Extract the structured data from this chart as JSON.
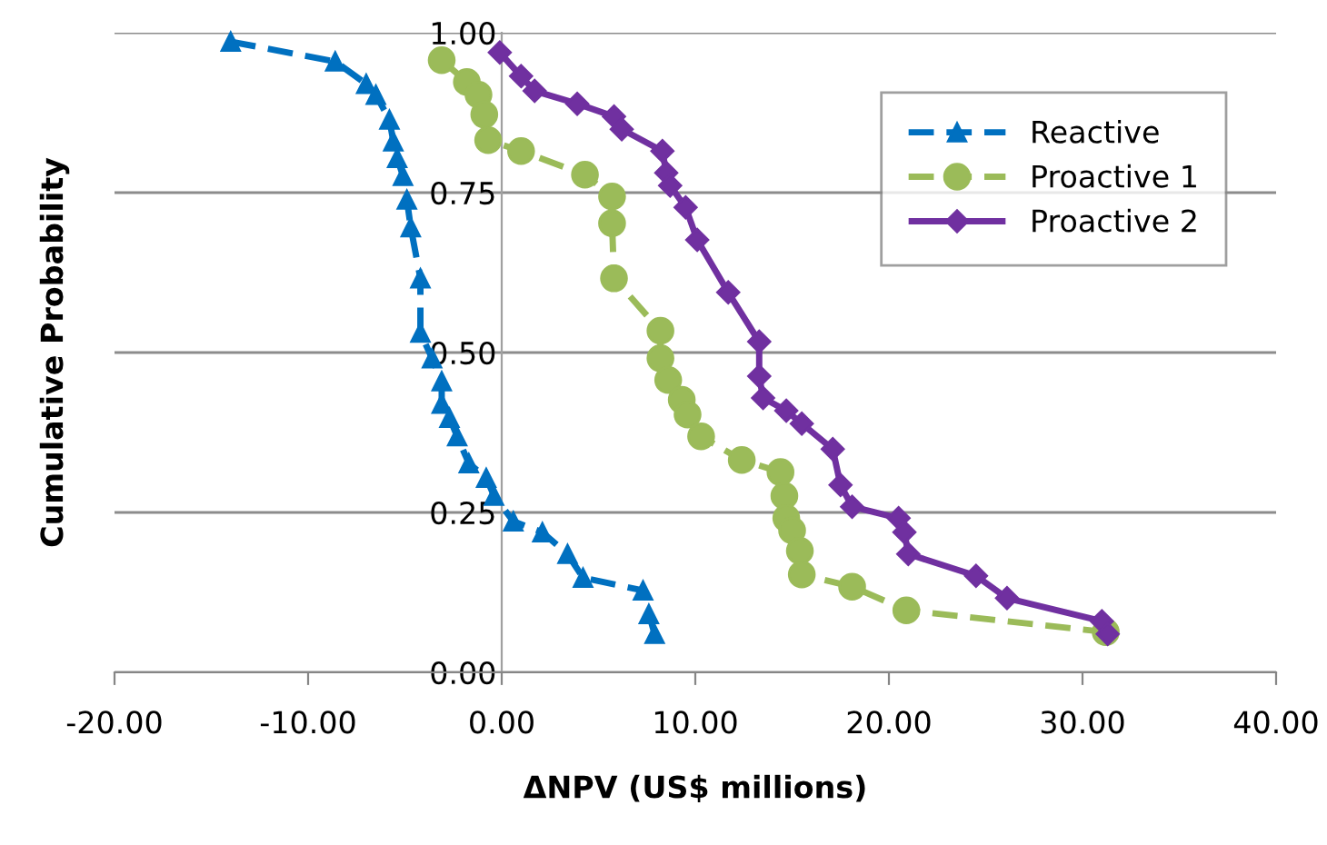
{
  "chart_data": {
    "type": "line",
    "xlabel": "ΔNPV (US$ millions)",
    "ylabel": "Cumulative Probability",
    "xlim": [
      -20,
      40
    ],
    "ylim": [
      0,
      1
    ],
    "xticks": [
      {
        "value": -20,
        "label": "-20.00"
      },
      {
        "value": -10,
        "label": "-10.00"
      },
      {
        "value": 0,
        "label": "0.00"
      },
      {
        "value": 10,
        "label": "10.00"
      },
      {
        "value": 20,
        "label": "20.00"
      },
      {
        "value": 30,
        "label": "30.00"
      },
      {
        "value": 40,
        "label": "40.00"
      }
    ],
    "yticks": [
      {
        "value": 0,
        "label": "0.00"
      },
      {
        "value": 0.25,
        "label": "0.25"
      },
      {
        "value": 0.5,
        "label": "0.50"
      },
      {
        "value": 0.75,
        "label": "0.75"
      },
      {
        "value": 1,
        "label": "1.00"
      }
    ],
    "grid": "y",
    "legend": "top right",
    "series": [
      {
        "name": "Reactive",
        "color": "#0070c0",
        "marker": "triangle",
        "line_style": "dashed",
        "x": [
          -14.0,
          -8.6,
          -7.0,
          -6.5,
          -5.8,
          -5.6,
          -5.4,
          -5.1,
          -4.9,
          -4.7,
          -4.2,
          -4.2,
          -3.6,
          -3.1,
          -3.1,
          -2.7,
          -2.3,
          -1.7,
          -0.8,
          -0.4,
          0.6,
          2.1,
          3.4,
          4.2,
          7.3,
          7.6,
          7.9
        ],
        "values": [
          0.986,
          0.955,
          0.92,
          0.903,
          0.864,
          0.83,
          0.804,
          0.776,
          0.739,
          0.696,
          0.616,
          0.531,
          0.491,
          0.455,
          0.42,
          0.398,
          0.369,
          0.327,
          0.304,
          0.276,
          0.236,
          0.219,
          0.185,
          0.148,
          0.128,
          0.091,
          0.06
        ]
      },
      {
        "name": "Proactive 1",
        "color": "#9bbb59",
        "marker": "circle",
        "line_style": "dashed",
        "x": [
          -3.1,
          -1.8,
          -1.2,
          -0.9,
          -0.7,
          1.0,
          4.3,
          5.7,
          5.7,
          5.8,
          8.2,
          8.2,
          8.6,
          9.3,
          9.6,
          10.3,
          12.4,
          14.4,
          14.6,
          14.7,
          15.0,
          15.4,
          15.5,
          18.1,
          20.9,
          31.2
        ],
        "values": [
          0.957,
          0.923,
          0.903,
          0.872,
          0.832,
          0.815,
          0.778,
          0.744,
          0.702,
          0.616,
          0.534,
          0.491,
          0.457,
          0.426,
          0.403,
          0.369,
          0.332,
          0.313,
          0.276,
          0.241,
          0.222,
          0.19,
          0.153,
          0.134,
          0.097,
          0.063
        ]
      },
      {
        "name": "Proactive 2",
        "color": "#7030a0",
        "marker": "diamond",
        "line_style": "solid",
        "x": [
          -0.1,
          1.0,
          1.7,
          3.9,
          5.8,
          6.2,
          8.3,
          8.5,
          8.7,
          9.5,
          10.1,
          11.7,
          13.3,
          13.3,
          13.5,
          14.7,
          15.5,
          17.1,
          17.5,
          18.1,
          20.5,
          20.8,
          21.0,
          24.5,
          26.1,
          31.0,
          31.3
        ],
        "values": [
          0.969,
          0.932,
          0.909,
          0.889,
          0.869,
          0.849,
          0.815,
          0.781,
          0.761,
          0.727,
          0.676,
          0.594,
          0.517,
          0.463,
          0.429,
          0.409,
          0.389,
          0.349,
          0.293,
          0.259,
          0.241,
          0.219,
          0.185,
          0.151,
          0.116,
          0.08,
          0.06
        ]
      }
    ]
  }
}
